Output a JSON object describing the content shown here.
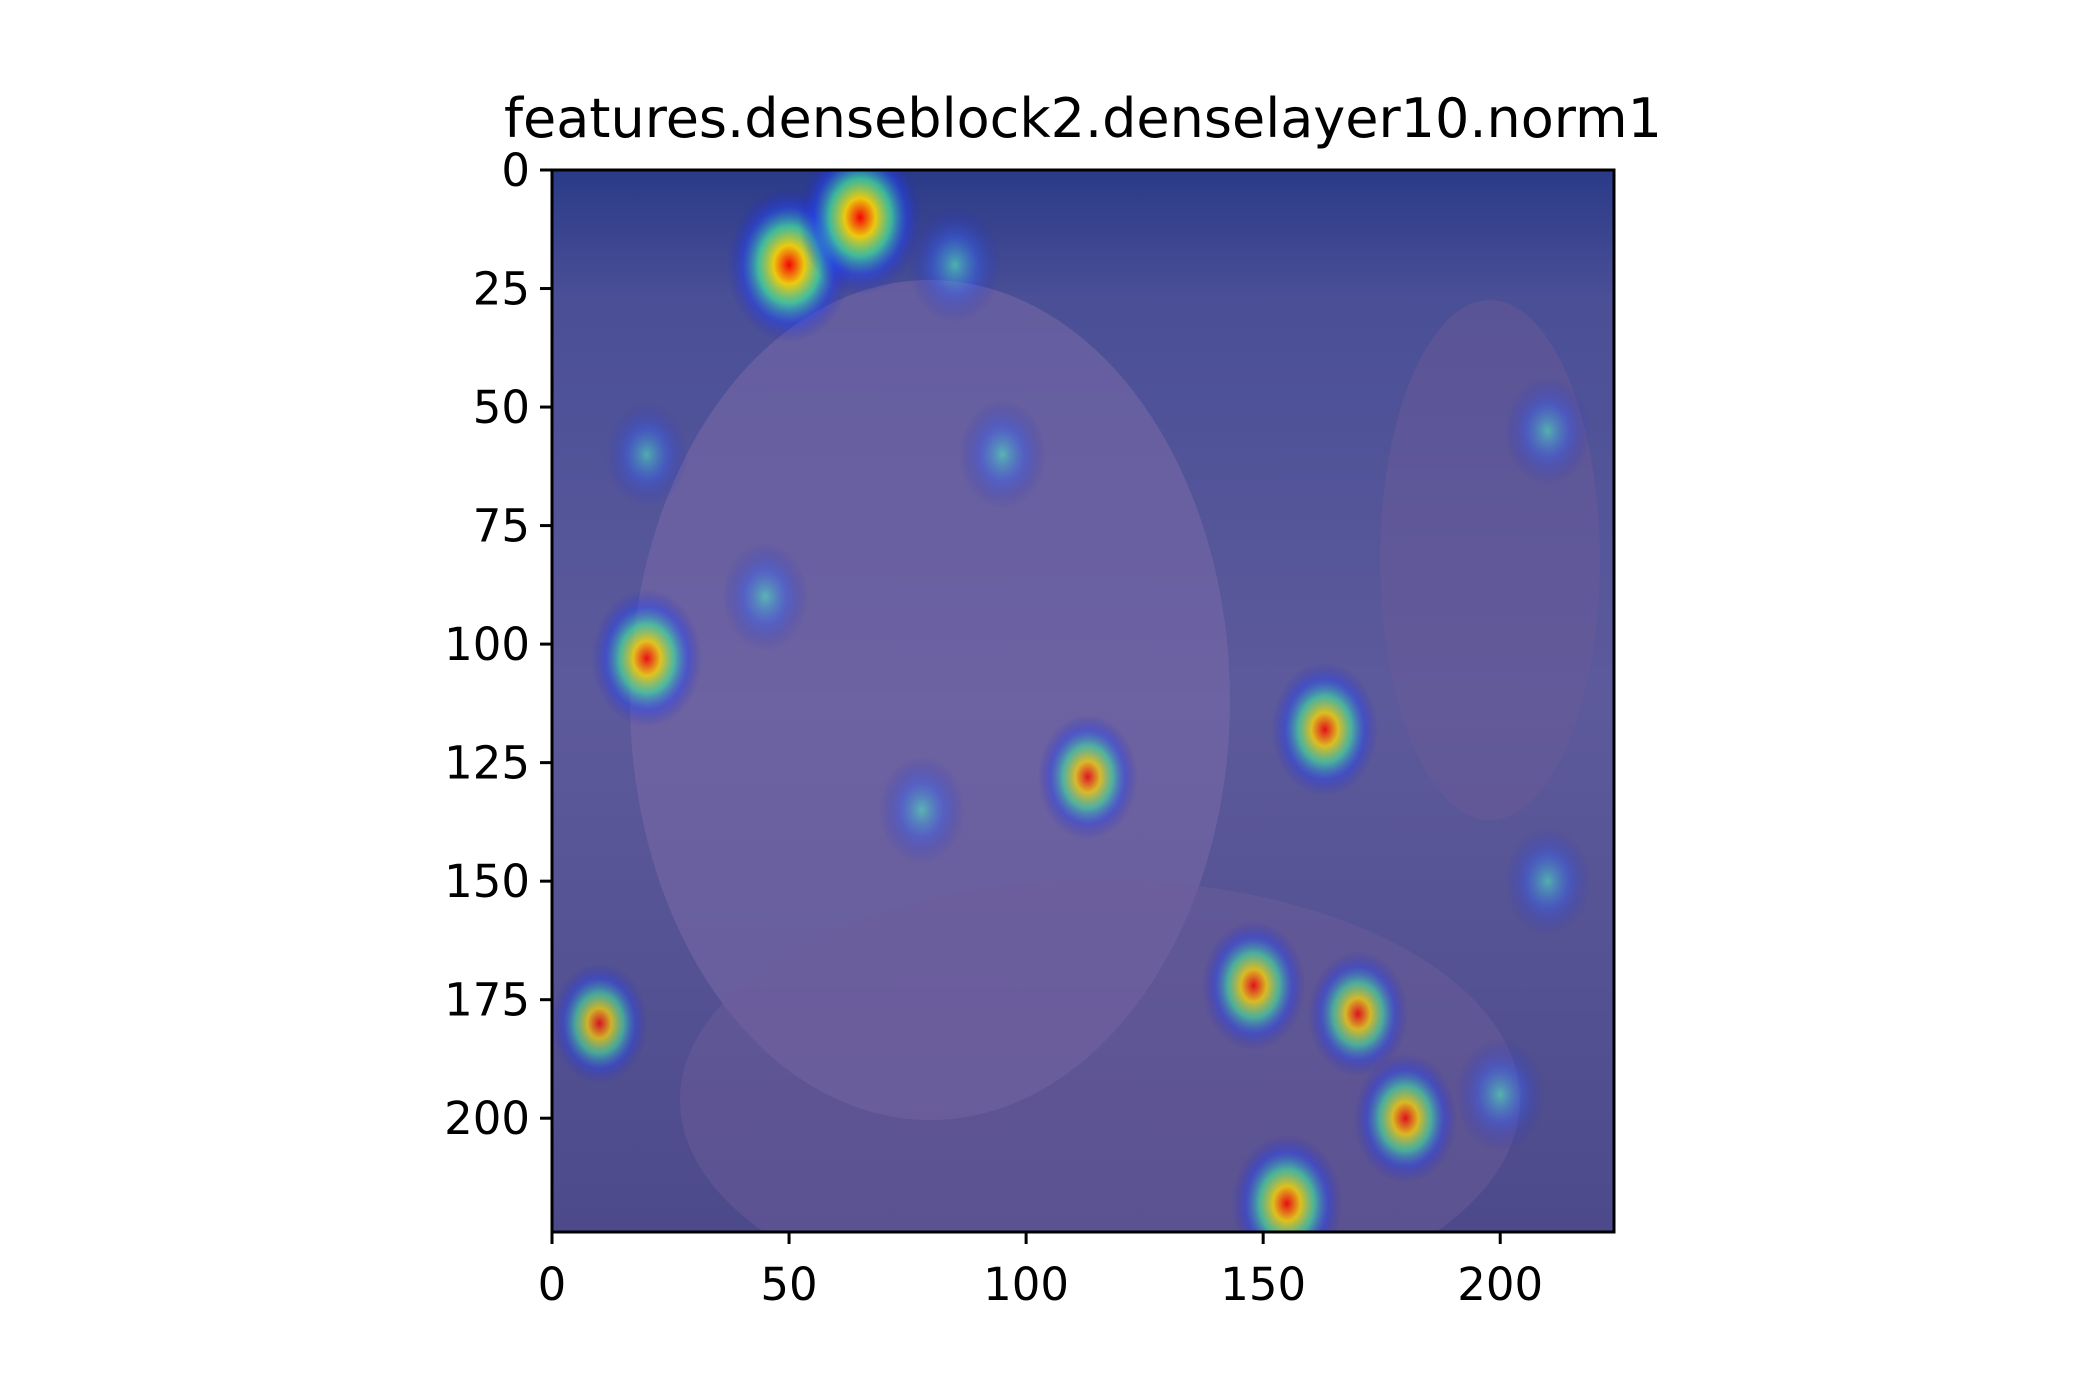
{
  "chart_data": {
    "type": "heatmap",
    "title": "features.denseblock2.denselayer10.norm1",
    "xlabel": "",
    "ylabel": "",
    "xlim": [
      0,
      224
    ],
    "ylim": [
      224,
      0
    ],
    "x_ticks": [
      0,
      50,
      100,
      150,
      200
    ],
    "y_ticks": [
      0,
      25,
      50,
      75,
      100,
      125,
      150,
      175,
      200
    ],
    "grid": false,
    "colormap": "jet",
    "background_tint": "#5a5aa0",
    "hotspots": [
      {
        "x": 50,
        "y": 20,
        "intensity": 1.0
      },
      {
        "x": 65,
        "y": 10,
        "intensity": 1.0
      },
      {
        "x": 20,
        "y": 103,
        "intensity": 0.8
      },
      {
        "x": 163,
        "y": 118,
        "intensity": 0.75
      },
      {
        "x": 155,
        "y": 218,
        "intensity": 0.8
      },
      {
        "x": 180,
        "y": 200,
        "intensity": 0.7
      },
      {
        "x": 148,
        "y": 172,
        "intensity": 0.7
      },
      {
        "x": 113,
        "y": 128,
        "intensity": 0.65
      },
      {
        "x": 170,
        "y": 178,
        "intensity": 0.65
      },
      {
        "x": 10,
        "y": 180,
        "intensity": 0.6
      },
      {
        "x": 85,
        "y": 20,
        "intensity": 0.55
      },
      {
        "x": 45,
        "y": 90,
        "intensity": 0.45
      },
      {
        "x": 78,
        "y": 135,
        "intensity": 0.45
      },
      {
        "x": 20,
        "y": 60,
        "intensity": 0.4
      },
      {
        "x": 95,
        "y": 60,
        "intensity": 0.45
      },
      {
        "x": 210,
        "y": 55,
        "intensity": 0.45
      },
      {
        "x": 210,
        "y": 150,
        "intensity": 0.45
      },
      {
        "x": 200,
        "y": 195,
        "intensity": 0.5
      }
    ]
  }
}
